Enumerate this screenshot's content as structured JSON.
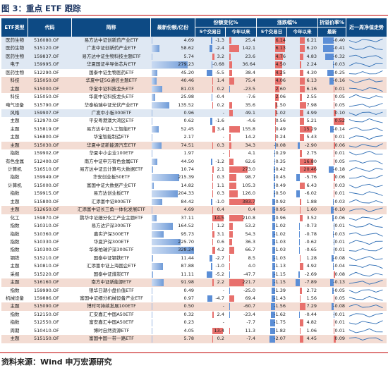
{
  "title": "图 3：重点 ETF 跟踪",
  "source": "资料来源：Wind  申万宏源研究",
  "headers": {
    "type": "ETF类型",
    "code": "代码",
    "name": "简称",
    "scale": "最新份额/亿份",
    "share_change": "份额变化%",
    "change": "涨跌幅%",
    "premium": "折溢价率%",
    "premium_latest": "最新",
    "spark": "近一周净值走势",
    "d5": "5个交易日",
    "ytd": "今年以来"
  },
  "colors": {
    "header_bg": "#0d4a84",
    "pos_red": "#e8706c",
    "neg_blue": "#5b8ed6",
    "scale_blue": "#6f9bd8",
    "shade_pink": "#f3dcd3",
    "shade_blue": "#dfe8f3"
  },
  "rows": [
    {
      "type": "医药生物",
      "code": "516080.OF",
      "name": "易方达中证创新药产业ETF",
      "scale": "4.69",
      "ch5": "-1.3",
      "chy": "25.4",
      "r5": "6.14",
      "ry": "6.21",
      "prem": "-0.40",
      "shade": "blue"
    },
    {
      "type": "医药生物",
      "code": "515120.OF",
      "name": "广发中证创新药产业ETF",
      "scale": "58.62",
      "ch5": "-2.4",
      "chy": "142.1",
      "r5": "6.13",
      "ry": "6.20",
      "prem": "-0.41",
      "shade": "blue"
    },
    {
      "type": "医药生物",
      "code": "159837.OF",
      "name": "易方达中证生物科技主题ETF",
      "scale": "5.74",
      "ch5": "3.2",
      "chy": "23.6",
      "r5": "4.76",
      "ry": "4.83",
      "prem": "-0.32",
      "shade": "blue"
    },
    {
      "type": "电子",
      "code": "159995.OF",
      "name": "华夏国证半导体芯片ETF",
      "scale": "279.23",
      "ch5": "-0.68",
      "chy": "36.64",
      "r5": "4.50",
      "ry": "2.24",
      "prem": "-0.03",
      "shade": "blue"
    },
    {
      "type": "医药生物",
      "code": "512290.OF",
      "name": "国泰中证生物医药ETF",
      "scale": "45.20",
      "ch5": "-5.5",
      "chy": "38.4",
      "r5": "4.25",
      "ry": "4.30",
      "prem": "-0.25",
      "shade": "none"
    },
    {
      "type": "科技",
      "code": "515050.OF",
      "name": "华夏中证5G通信主题ETF",
      "scale": "40.46",
      "ch5": "1.4",
      "chy": "75.4",
      "r5": "4.06",
      "ry": "6.13",
      "prem": "-0.16",
      "shade": "shade"
    },
    {
      "type": "主题",
      "code": "515000.OF",
      "name": "华宝中证科技龙头ETF",
      "scale": "81.03",
      "ch5": "0.2",
      "chy": "-23.5",
      "r5": "2.60",
      "ry": "6.16",
      "prem": "0.01",
      "shade": "shade"
    },
    {
      "type": "科技",
      "code": "515050.OF",
      "name": "华夏中证科技龙头ETF",
      "scale": "25.98",
      "ch5": "-0.4",
      "chy": "-7.6",
      "r5": "2.06",
      "ry": "2.55",
      "prem": "0.05",
      "shade": "none"
    },
    {
      "type": "电气设备",
      "code": "515790.OF",
      "name": "华泰柏瑞中证光伏产业ETF",
      "scale": "135.52",
      "ch5": "0.2",
      "chy": "35.6",
      "r5": "1.50",
      "ry": "7.98",
      "prem": "0.05",
      "shade": "none"
    },
    {
      "type": "风格",
      "code": "159907.OF",
      "name": "广发中小板300ETF",
      "scale": "0.96",
      "ch5": "-",
      "chy": "49.1",
      "r5": "1.02",
      "ry": "4.99",
      "prem": "0.10",
      "shade": "blue"
    },
    {
      "type": "主题",
      "code": "512970.OF",
      "name": "平安粤港澳大湾区ETF",
      "scale": "0.62",
      "ch5": "-1.6",
      "chy": "-4.6",
      "r5": "0.56",
      "ry": "5.21",
      "prem": "0.52",
      "shade": "none"
    },
    {
      "type": "主题",
      "code": "515819.OF",
      "name": "易方达中证人工智能ETF",
      "scale": "52.45",
      "ch5": "3.4",
      "chy": "155.8",
      "r5": "0.49",
      "ry": "15.29",
      "prem": "-0.14",
      "shade": "none"
    },
    {
      "type": "主题",
      "code": "516800.OF",
      "name": "华宝智能制造ETF",
      "scale": "2.17",
      "ch5": "-",
      "chy": "14.2",
      "r5": "0.24",
      "ry": "5.43",
      "prem": "0.01",
      "shade": "none"
    },
    {
      "type": "主题",
      "code": "515030.OF",
      "name": "华夏中证新能源汽车ETF",
      "scale": "74.51",
      "ch5": "0.3",
      "chy": "34.3",
      "r5": "-0.08",
      "ry": "-2.90",
      "prem": "0.06",
      "shade": "shade"
    },
    {
      "type": "指数",
      "code": "159902.OF",
      "name": "华夏中小企业100ETF",
      "scale": "1.97",
      "ch5": "-",
      "chy": "4.1",
      "r5": "-0.29",
      "ry": "2.75",
      "prem": "0.01",
      "shade": "none"
    },
    {
      "type": "有色金属",
      "code": "512400.OF",
      "name": "南方中证申万有色金属ETF",
      "scale": "44.50",
      "ch5": "-1.2",
      "chy": "62.6",
      "r5": "-0.35",
      "ry": "16.80",
      "prem": "0.05",
      "shade": "none"
    },
    {
      "type": "计算机",
      "code": "516510.OF",
      "name": "易方达中证云计算与大数据ETF",
      "scale": "10.74",
      "ch5": "2.1",
      "chy": "273.0",
      "r5": "-0.42",
      "ry": "20.46",
      "prem": "-0.18",
      "shade": "none"
    },
    {
      "type": "指数",
      "code": "159949.OF",
      "name": "华安创业板50ETF",
      "scale": "215.39",
      "ch5": "0.3",
      "chy": "98.7",
      "r5": "-0.45",
      "ry": "-5.76",
      "prem": "0.06",
      "shade": "none"
    },
    {
      "type": "计算机",
      "code": "515000.OF",
      "name": "富国中证大数据产业ETF",
      "scale": "14.82",
      "ch5": "1.1",
      "chy": "105.3",
      "r5": "-0.49",
      "ry": "6.43",
      "prem": "0.03",
      "shade": "none"
    },
    {
      "type": "指数",
      "code": "159915.OF",
      "name": "易方达创业板ETF",
      "scale": "204.33",
      "ch5": "0.3",
      "chy": "126.0",
      "r5": "-0.50",
      "ry": "-6.02",
      "prem": "0.01",
      "shade": "none"
    },
    {
      "type": "主题",
      "code": "515800.OF",
      "name": "汇添富中证800ETF",
      "scale": "84.42",
      "ch5": "-1.0",
      "chy": "383.7",
      "r5": "-0.92",
      "ry": "1.88",
      "prem": "-0.03",
      "shade": "none"
    },
    {
      "type": "主题",
      "code": "512650.OF",
      "name": "汇添富中证长三角一体化发展ETF",
      "scale": "4.69",
      "ch5": "0.4",
      "chy": "0.4",
      "r5": "-0.95",
      "ry": "1.60",
      "prem": "-0.10",
      "shade": "shade"
    },
    {
      "type": "化工",
      "code": "159870.OF",
      "name": "鹏华中证细分化工产业主题ETF",
      "scale": "37.11",
      "ch5": "14.5",
      "chy": "210.8",
      "r5": "-0.96",
      "ry": "3.52",
      "prem": "-0.06",
      "shade": "none"
    },
    {
      "type": "指数",
      "code": "510310.OF",
      "name": "易方达沪深300ETF",
      "scale": "164.52",
      "ch5": "1.2",
      "chy": "53.2",
      "r5": "-1.02",
      "ry": "-0.73",
      "prem": "-0.01",
      "shade": "none"
    },
    {
      "type": "指数",
      "code": "510360.OF",
      "name": "嘉实沪深300ETF",
      "scale": "95.73",
      "ch5": "3.1",
      "chy": "54.3",
      "r5": "-1.02",
      "ry": "-0.78",
      "prem": "-0.03",
      "shade": "none"
    },
    {
      "type": "指数",
      "code": "510330.OF",
      "name": "华夏沪深300ETF",
      "scale": "225.70",
      "ch5": "0.6",
      "chy": "36.3",
      "r5": "-1.03",
      "ry": "-0.62",
      "prem": "-0.01",
      "shade": "none"
    },
    {
      "type": "指数",
      "code": "510300.OF",
      "name": "华泰柏瑞沪深300ETF",
      "scale": "328.24",
      "ch5": "4.2",
      "chy": "66.7",
      "r5": "-1.03",
      "ry": "-0.65",
      "prem": "-0.01",
      "shade": "none"
    },
    {
      "type": "钢铁",
      "code": "515210.OF",
      "name": "国泰中证钢铁ETF",
      "scale": "11.44",
      "ch5": "-2.7",
      "chy": "8.5",
      "r5": "-1.03",
      "ry": "1.28",
      "prem": "-0.08",
      "shade": "none"
    },
    {
      "type": "主题",
      "code": "510810.OF",
      "name": "汇添富中证上海国企ETF",
      "scale": "87.88",
      "ch5": "-1.0",
      "chy": "4.0",
      "r5": "-1.13",
      "ry": "4.92",
      "prem": "-0.04",
      "shade": "none"
    },
    {
      "type": "采掘",
      "code": "515220.OF",
      "name": "国泰中证煤炭ETF",
      "scale": "11.11",
      "ch5": "-5.2",
      "chy": "-47.7",
      "r5": "-1.15",
      "ry": "-2.69",
      "prem": "0.08",
      "shade": "none"
    },
    {
      "type": "主题",
      "code": "516160.OF",
      "name": "南方中证新能源ETF",
      "scale": "91.98",
      "ch5": "2.2",
      "chy": "221.7",
      "r5": "-1.15",
      "ry": "-7.89",
      "prem": "-0.13",
      "shade": "shade"
    },
    {
      "type": "指数",
      "code": "159990.OF",
      "name": "银华日潮小盘价值ETF",
      "scale": "0.49",
      "ch5": "-",
      "chy": "-25.0",
      "r5": "-1.39",
      "ry": "2.72",
      "prem": "-0.05",
      "shade": "none"
    },
    {
      "type": "机械设备",
      "code": "159886.OF",
      "name": "富国中证细分机械设备产业ETF",
      "scale": "0.97",
      "ch5": "-4.7",
      "chy": "69.4",
      "r5": "-1.43",
      "ry": "1.56",
      "prem": "0.05",
      "shade": "none"
    },
    {
      "type": "主题",
      "code": "515090.OF",
      "name": "博时可持续发展100ETF",
      "scale": "0.50",
      "ch5": "-",
      "chy": "-60.7",
      "r5": "-1.56",
      "ry": "7.29",
      "prem": "-0.08",
      "shade": "shade"
    },
    {
      "type": "指数",
      "code": "512150.OF",
      "name": "汇安嘉汇中国A50ETF",
      "scale": "0.32",
      "ch5": "2.4",
      "chy": "-23.4",
      "r5": "-1.62",
      "ry": "-0.44",
      "prem": "-0.01",
      "shade": "none"
    },
    {
      "type": "指数",
      "code": "512550.OF",
      "name": "富安嘉汇中国A50ETF",
      "scale": "0.23",
      "ch5": "-",
      "chy": "-7.7",
      "r5": "-1.75",
      "ry": "4.82",
      "prem": "0.01",
      "shade": "none"
    },
    {
      "type": "周期",
      "code": "510410.OF",
      "name": "博时自然资源ETF",
      "scale": "4.05",
      "ch5": "13.4",
      "chy": "11.3",
      "r5": "-1.82",
      "ry": "1.06",
      "prem": "0.01",
      "shade": "none"
    },
    {
      "type": "主题",
      "code": "515150.OF",
      "name": "富国中国一带一路ETF",
      "scale": "5.78",
      "ch5": "0.2",
      "chy": "-7.4",
      "r5": "-2.07",
      "ry": "4.45",
      "prem": "0.09",
      "shade": "shade"
    }
  ]
}
